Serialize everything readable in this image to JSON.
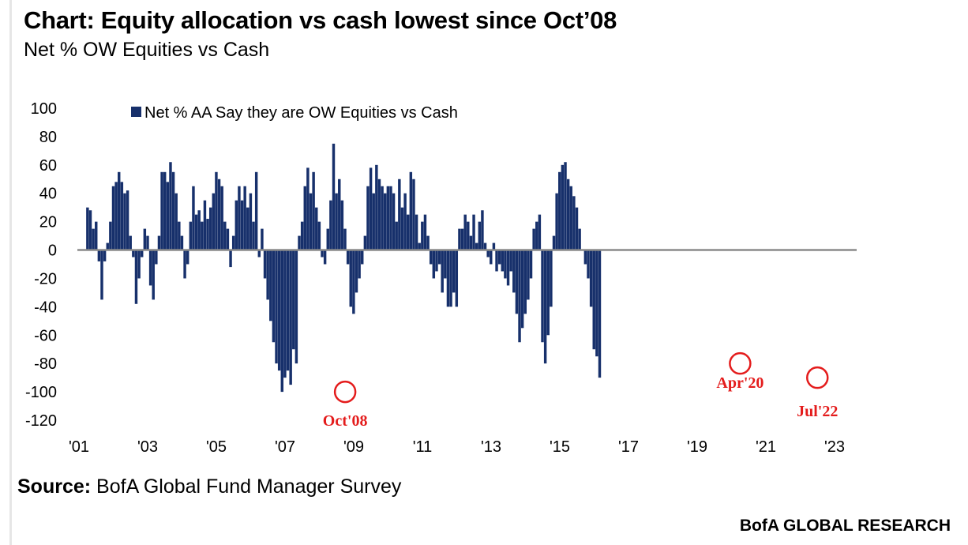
{
  "header": {
    "title": "Chart: Equity allocation vs cash lowest since Oct’08",
    "subtitle": "Net % OW Equities vs Cash"
  },
  "footer": {
    "source_label": "Source:",
    "source_text": "BofA Global Fund Manager Survey",
    "brand": "BofA GLOBAL RESEARCH"
  },
  "chart_data": {
    "type": "bar",
    "legend": {
      "label": "Net % AA Say they are OW Equities vs Cash",
      "position": "top-left"
    },
    "ylim": [
      -120,
      100
    ],
    "yticks": [
      100,
      80,
      60,
      40,
      20,
      0,
      -20,
      -40,
      -60,
      -80,
      -100,
      -120
    ],
    "xlim": [
      2001.0,
      2023.0
    ],
    "xticks": [
      {
        "value": 2001,
        "label": "'01"
      },
      {
        "value": 2003,
        "label": "'03"
      },
      {
        "value": 2005,
        "label": "'05"
      },
      {
        "value": 2007,
        "label": "'07"
      },
      {
        "value": 2009,
        "label": "'09"
      },
      {
        "value": 2011,
        "label": "'11"
      },
      {
        "value": 2013,
        "label": "'13"
      },
      {
        "value": 2015,
        "label": "'15"
      },
      {
        "value": 2017,
        "label": "'17"
      },
      {
        "value": 2019,
        "label": "'19"
      },
      {
        "value": 2021,
        "label": "'21"
      },
      {
        "value": 2023,
        "label": "'23"
      }
    ],
    "bar_color": "#17306b",
    "annotation_color": "#e41c1c",
    "annotations": [
      {
        "label": "Oct'08",
        "x": 2008.75,
        "y": -100
      },
      {
        "label": "Apr'20",
        "x": 2020.25,
        "y": -80
      },
      {
        "label": "Jul'22",
        "x": 2022.5,
        "y": -90
      }
    ],
    "series": [
      {
        "start": 2001.25,
        "step": 0.0833,
        "values": [
          30,
          28,
          15,
          20,
          -8,
          -35,
          -8,
          5,
          20,
          45,
          48,
          55,
          48,
          40,
          42,
          10,
          -5,
          -38,
          -20,
          -5,
          15,
          10,
          -25,
          -35,
          -10,
          10,
          55,
          55,
          48,
          62,
          55,
          40,
          20,
          10,
          -20,
          -10,
          20,
          45,
          25,
          28,
          20,
          35,
          22,
          30,
          40,
          55,
          50,
          45,
          20,
          15,
          -12,
          10,
          35,
          45,
          35,
          45,
          30,
          40,
          20,
          55,
          -5,
          15,
          -20,
          -35,
          -50,
          -65,
          -80,
          -85,
          -100,
          -90,
          -85,
          -95,
          -70,
          -80,
          10,
          20,
          45,
          58,
          40,
          55,
          30,
          20,
          -5,
          -10,
          15,
          35,
          75,
          40,
          50,
          35,
          15,
          -10,
          -40,
          -45,
          -30,
          -20,
          -10,
          10,
          45,
          58,
          40,
          60,
          50,
          45,
          40,
          45,
          45,
          40,
          20,
          50,
          30,
          40,
          25,
          55,
          50,
          25,
          5,
          20,
          25,
          10,
          -10,
          -20,
          -15,
          -10,
          -30,
          -20,
          -40,
          -40,
          -30,
          -40,
          15,
          15,
          25,
          20,
          10,
          25,
          5,
          20,
          28,
          5,
          -5,
          -10,
          5,
          -15,
          -10,
          -15,
          -20,
          -25,
          -15,
          -30,
          -45,
          -65,
          -55,
          -45,
          -35,
          -20,
          15,
          20,
          25,
          -65,
          -80,
          -60,
          -40,
          10,
          40,
          55,
          60,
          62,
          50,
          45,
          38,
          30,
          15,
          0,
          -10,
          -20,
          -40,
          -70,
          -75,
          -90
        ]
      }
    ]
  }
}
